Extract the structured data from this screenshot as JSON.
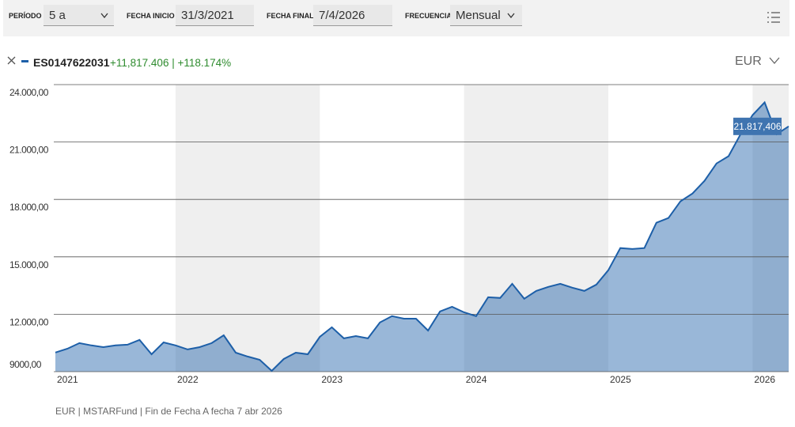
{
  "toolbar": {
    "period_label": "PERÍODO",
    "period_value": "5 a",
    "start_label": "FECHA INICIO",
    "start_value": "31/3/2021",
    "end_label": "FECHA FINAL",
    "end_value": "7/4/2026",
    "freq_label": "FRECUENCIA",
    "freq_value": "Mensual"
  },
  "legend": {
    "change": "+11,817.406 | +118.174%",
    "currency": "EUR"
  },
  "chart_data": {
    "type": "area",
    "categories": [
      "2021",
      null,
      null,
      null,
      null,
      null,
      null,
      null,
      null,
      null,
      "2022",
      null,
      null,
      null,
      null,
      null,
      null,
      null,
      null,
      null,
      null,
      null,
      "2023",
      null,
      null,
      null,
      null,
      null,
      null,
      null,
      null,
      null,
      null,
      null,
      "2024",
      null,
      null,
      null,
      null,
      null,
      null,
      null,
      null,
      null,
      null,
      null,
      "2025",
      null,
      null,
      null,
      null,
      null,
      null,
      null,
      null,
      null,
      null,
      null,
      "2026",
      null,
      null,
      null
    ],
    "series": [
      {
        "name": "ES0147622031",
        "color": "#1d5fa8",
        "values": [
          10000,
          10200,
          10490,
          10370,
          10280,
          10370,
          10410,
          10660,
          9910,
          10530,
          10370,
          10160,
          10280,
          10490,
          10900,
          9990,
          9790,
          9620,
          9040,
          9660,
          9990,
          9910,
          10820,
          11320,
          10740,
          10860,
          10740,
          11570,
          11900,
          11770,
          11770,
          11150,
          12150,
          12390,
          12100,
          11900,
          12890,
          12850,
          13590,
          12810,
          13220,
          13430,
          13590,
          13390,
          13220,
          13550,
          14300,
          15460,
          15410,
          15460,
          16780,
          17030,
          17900,
          18310,
          18970,
          19880,
          20260,
          21410,
          22410,
          23070,
          21410,
          21817.406
        ],
        "value_labels": [
          null,
          null,
          null,
          null,
          null,
          null,
          null,
          null,
          null,
          null,
          null,
          null,
          null,
          null,
          null,
          null,
          null,
          null,
          null,
          null,
          null,
          null,
          null,
          null,
          null,
          null,
          null,
          null,
          null,
          null,
          null,
          null,
          null,
          null,
          null,
          null,
          null,
          null,
          null,
          null,
          null,
          null,
          null,
          null,
          null,
          null,
          null,
          null,
          null,
          null,
          null,
          null,
          null,
          null,
          null,
          null,
          null,
          null,
          null,
          null,
          null,
          "21.817,406"
        ]
      }
    ],
    "ylim": [
      9000,
      24000
    ],
    "yticks": [
      {
        "value": 9000,
        "label": "9000,00"
      },
      {
        "value": 12000,
        "label": "12.000,00"
      },
      {
        "value": 15000,
        "label": "15.000,00"
      },
      {
        "value": 18000,
        "label": "18.000,00"
      },
      {
        "value": 21000,
        "label": "21.000,00"
      },
      {
        "value": 24000,
        "label": "24.000,00"
      }
    ],
    "grid": true
  },
  "footer": "EUR | MSTARFund | Fin de Fecha A fecha 7 abr 2026"
}
